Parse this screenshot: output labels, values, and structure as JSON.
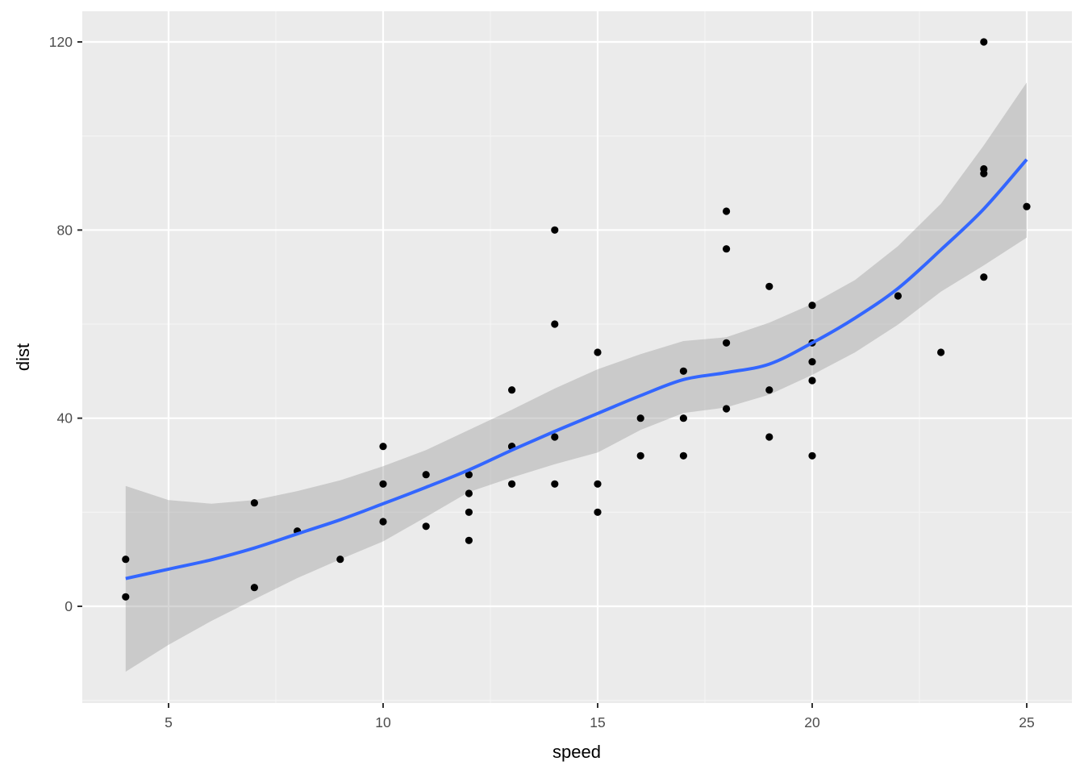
{
  "chart_data": {
    "type": "scatter",
    "title": "",
    "xlabel": "speed",
    "ylabel": "dist",
    "xlim": [
      3,
      26
    ],
    "ylim": [
      -20,
      124
    ],
    "xticks": [
      5,
      10,
      15,
      20,
      25
    ],
    "yticks": [
      0,
      40,
      80,
      120
    ],
    "grid": true,
    "legend": null,
    "series": [
      {
        "name": "points",
        "type": "scatter",
        "color": "#000000",
        "points": [
          [
            4,
            2
          ],
          [
            4,
            10
          ],
          [
            7,
            4
          ],
          [
            7,
            22
          ],
          [
            8,
            16
          ],
          [
            9,
            10
          ],
          [
            10,
            18
          ],
          [
            10,
            26
          ],
          [
            10,
            34
          ],
          [
            11,
            17
          ],
          [
            11,
            28
          ],
          [
            12,
            14
          ],
          [
            12,
            20
          ],
          [
            12,
            24
          ],
          [
            12,
            28
          ],
          [
            13,
            26
          ],
          [
            13,
            34
          ],
          [
            13,
            34
          ],
          [
            13,
            46
          ],
          [
            14,
            26
          ],
          [
            14,
            36
          ],
          [
            14,
            60
          ],
          [
            14,
            80
          ],
          [
            15,
            20
          ],
          [
            15,
            26
          ],
          [
            15,
            54
          ],
          [
            16,
            32
          ],
          [
            16,
            40
          ],
          [
            17,
            32
          ],
          [
            17,
            40
          ],
          [
            17,
            50
          ],
          [
            18,
            42
          ],
          [
            18,
            56
          ],
          [
            18,
            76
          ],
          [
            18,
            84
          ],
          [
            19,
            36
          ],
          [
            19,
            46
          ],
          [
            19,
            68
          ],
          [
            20,
            32
          ],
          [
            20,
            48
          ],
          [
            20,
            52
          ],
          [
            20,
            56
          ],
          [
            20,
            64
          ],
          [
            22,
            66
          ],
          [
            23,
            54
          ],
          [
            24,
            70
          ],
          [
            24,
            92
          ],
          [
            24,
            93
          ],
          [
            24,
            120
          ],
          [
            25,
            85
          ]
        ]
      },
      {
        "name": "loess smooth",
        "type": "line",
        "color": "#3366FF",
        "x": [
          4,
          5,
          6,
          7,
          8,
          9,
          10,
          11,
          12,
          13,
          14,
          15,
          16,
          17,
          18,
          19,
          20,
          21,
          22,
          23,
          24,
          25
        ],
        "y": [
          5.9,
          7.9,
          9.9,
          12.4,
          15.4,
          18.4,
          21.8,
          25.3,
          29.0,
          33.2,
          37.2,
          41.0,
          44.8,
          48.2,
          49.7,
          51.5,
          56.0,
          61.3,
          67.6,
          75.8,
          84.5,
          95.0
        ],
        "ymin": [
          -13.9,
          -8.2,
          -3.1,
          1.5,
          6.0,
          10.0,
          13.8,
          19.0,
          24.3,
          27.4,
          30.2,
          32.7,
          37.5,
          41.1,
          42.3,
          45.0,
          49.2,
          54.0,
          59.9,
          66.9,
          72.5,
          78.4
        ],
        "ymax": [
          25.6,
          22.6,
          21.8,
          22.6,
          24.5,
          26.8,
          29.8,
          33.2,
          37.5,
          41.8,
          46.3,
          50.4,
          53.6,
          56.4,
          57.2,
          60.3,
          64.3,
          69.4,
          76.6,
          85.6,
          98.0,
          111.4
        ],
        "ribbon_color": "#999999",
        "ribbon_alpha": 0.4
      }
    ]
  },
  "axes": {
    "x_title": "speed",
    "y_title": "dist",
    "x_tick_labels": [
      "5",
      "10",
      "15",
      "20",
      "25"
    ],
    "y_tick_labels": [
      "0",
      "40",
      "80",
      "120"
    ]
  },
  "theme": {
    "panel_bg": "#EBEBEB",
    "grid_major": "#FFFFFF",
    "grid_minor": "#F5F5F5",
    "tick_color": "#333333",
    "tick_label_color": "#4D4D4D",
    "point_color": "#000000",
    "line_color": "#3366FF",
    "ribbon_fill": "#999999"
  }
}
